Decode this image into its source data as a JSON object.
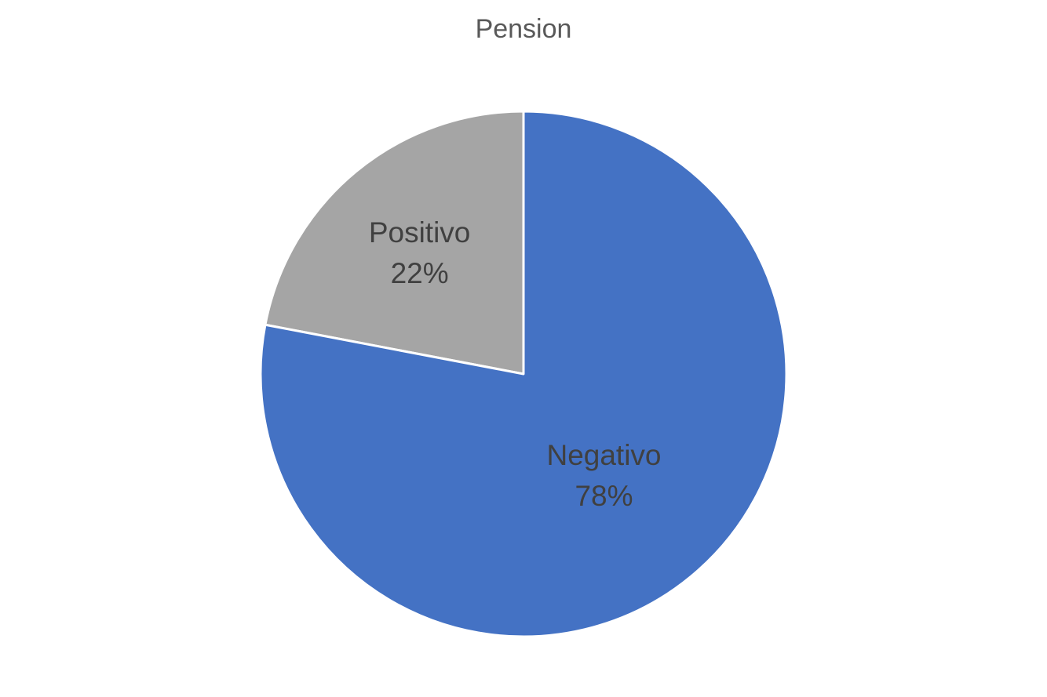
{
  "chart_data": {
    "type": "pie",
    "title": "Pension",
    "categories": [
      "Positivo",
      "Negativo"
    ],
    "values": [
      22,
      78
    ],
    "labels": [
      "22%",
      "78%"
    ],
    "colors": [
      "#A5A5A5",
      "#4472C4"
    ],
    "legend": "none",
    "start_angle": "12 o'clock, counterclockwise for first slice"
  }
}
